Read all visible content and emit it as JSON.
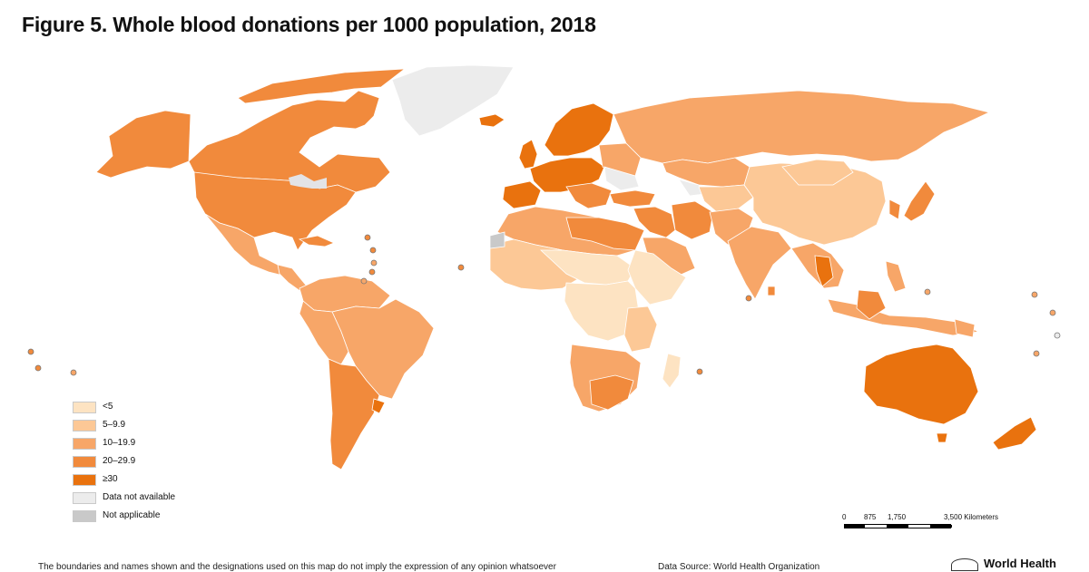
{
  "title": "Figure 5. Whole blood donations per 1000 population, 2018",
  "colors": {
    "lt5": "#fde3c2",
    "r5_9": "#fcc896",
    "r10_19": "#f7a668",
    "r20_29": "#f18a3c",
    "ge30": "#e9720e",
    "na": "#ececec",
    "notapp": "#c9c9c9",
    "border": "#ffffff"
  },
  "legend": {
    "items": [
      {
        "label": "<5",
        "key": "lt5"
      },
      {
        "label": "5–9.9",
        "key": "r5_9"
      },
      {
        "label": "10–19.9",
        "key": "r10_19"
      },
      {
        "label": "20–29.9",
        "key": "r20_29"
      },
      {
        "label": "≥30",
        "key": "ge30"
      },
      {
        "label": "Data not available",
        "key": "na"
      },
      {
        "label": "Not applicable",
        "key": "notapp"
      }
    ]
  },
  "scale": {
    "labels": [
      "0",
      "875",
      "1,750",
      "3,500 Kilometers"
    ]
  },
  "footer": {
    "disclaimer": "The boundaries and names shown and the designations used on this map do not imply the expression of any opinion whatsoever",
    "source": "Data Source: World Health Organization",
    "logo_text": "World Health"
  }
}
